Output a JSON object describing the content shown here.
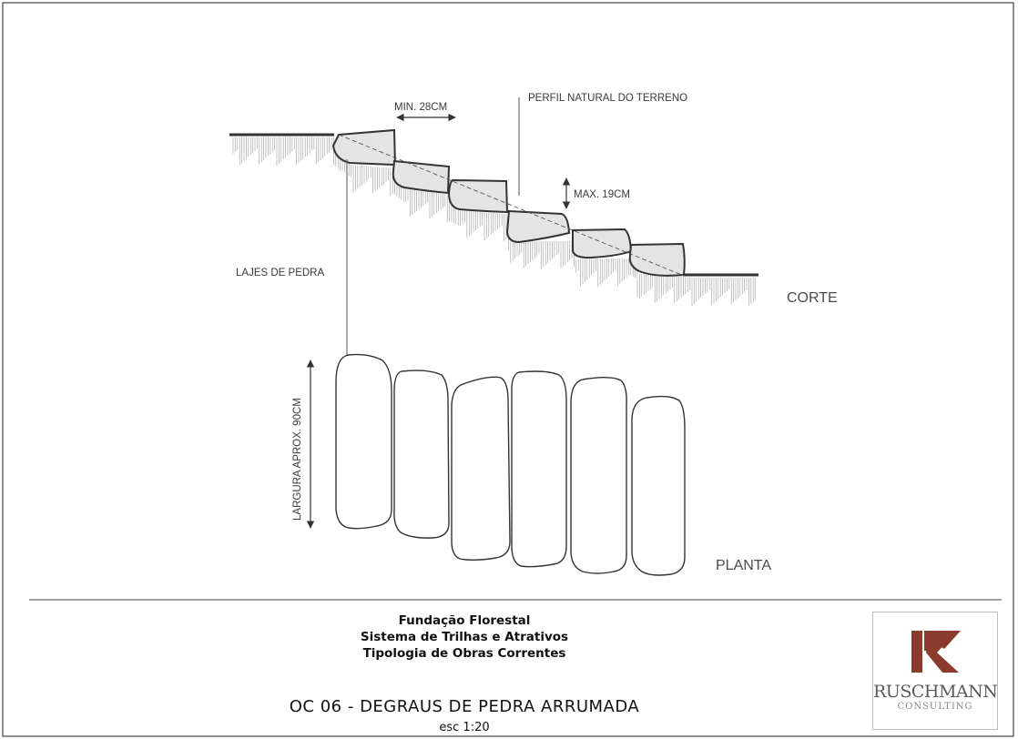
{
  "labels": {
    "min_tread": "MIN. 28CM",
    "terrain_profile": "PERFIL NATURAL DO TERRENO",
    "max_riser": "MAX. 19CM",
    "stone_slabs": "LAJES DE PEDRA",
    "section_view": "CORTE",
    "width": "LARGURA APROX. 90CM",
    "plan_view": "PLANTA"
  },
  "title_block": {
    "organization": "Fundação Florestal",
    "program": "Sistema de Trilhas e Atrativos",
    "category": "Tipologia de Obras Correntes",
    "sheet_title": "OC 06 - DEGRAUS DE PEDRA ARRUMADA",
    "scale": "esc 1:20"
  },
  "logo": {
    "name": "RUSCHMANN",
    "subtitle": "CONSULTING",
    "mark_color": "#8b3a2e"
  },
  "colors": {
    "line": "#333333",
    "stone_fill": "#e4e4e4",
    "hatch": "#9a9a9a"
  }
}
